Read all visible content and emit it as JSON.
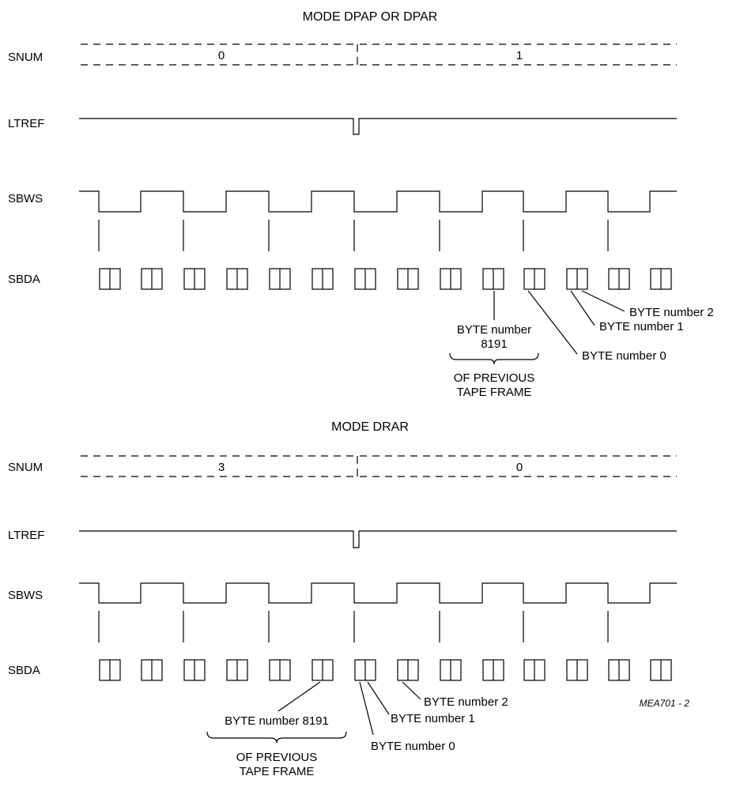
{
  "panels": [
    {
      "title": "MODE DPAP OR DPAR",
      "signals": [
        "SNUM",
        "LTREF",
        "SBWS",
        "SBDA"
      ],
      "snum_values": [
        "0",
        "1"
      ],
      "callouts": [
        "BYTE number 2",
        "BYTE number 1",
        "BYTE number 0"
      ],
      "prev_byte": [
        "BYTE number",
        "8191"
      ],
      "prev_note": [
        "OF PREVIOUS",
        "TAPE FRAME"
      ]
    },
    {
      "title": "MODE DRAR",
      "signals": [
        "SNUM",
        "LTREF",
        "SBWS",
        "SBDA"
      ],
      "snum_values": [
        "3",
        "0"
      ],
      "callouts": [
        "BYTE number 2",
        "BYTE number 1",
        "BYTE number 0"
      ],
      "prev_byte": [
        "BYTE number 8191"
      ],
      "prev_note": [
        "OF PREVIOUS",
        "TAPE FRAME"
      ]
    }
  ],
  "figure_ref": "MEA701 - 2"
}
